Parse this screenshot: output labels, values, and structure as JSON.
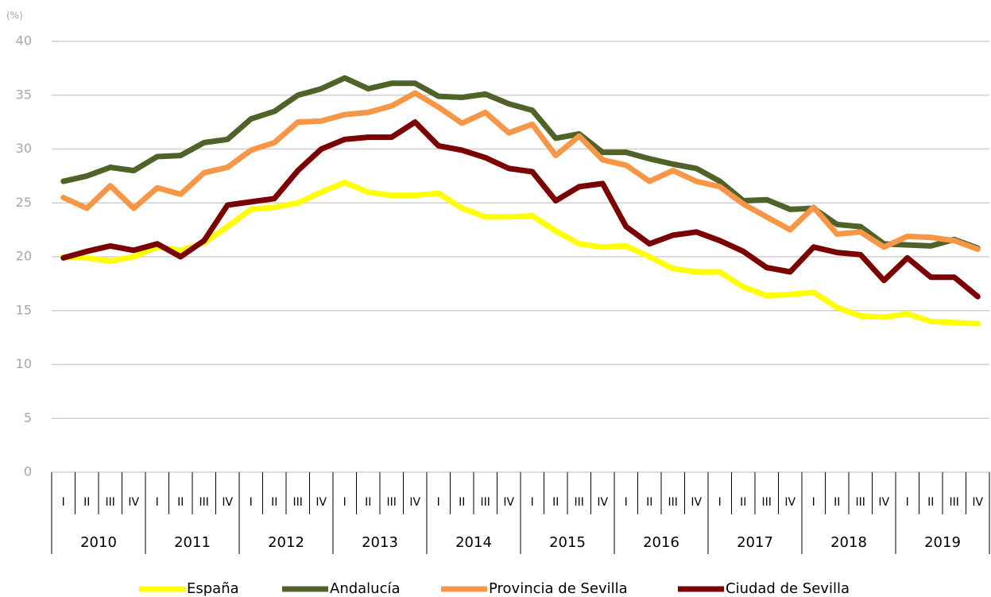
{
  "chart_data": {
    "type": "line",
    "y_unit": "(%)",
    "categories": [
      "I",
      "II",
      "III",
      "IV",
      "I",
      "II",
      "III",
      "IV",
      "I",
      "II",
      "III",
      "IV",
      "I",
      "II",
      "III",
      "IV",
      "I",
      "II",
      "III",
      "IV",
      "I",
      "II",
      "III",
      "IV",
      "I",
      "II",
      "III",
      "IV",
      "I",
      "II",
      "III",
      "IV",
      "I",
      "II",
      "III",
      "IV",
      "I",
      "II",
      "III",
      "IV"
    ],
    "years": [
      "2010",
      "2011",
      "2012",
      "2013",
      "2014",
      "2015",
      "2016",
      "2017",
      "2018",
      "2019"
    ],
    "ylim": [
      0,
      40
    ],
    "yticks": [
      0,
      5,
      10,
      15,
      20,
      25,
      30,
      35,
      40
    ],
    "grid": true,
    "legend": "bottom",
    "series": [
      {
        "name": "España",
        "color": "#ffff00",
        "values": [
          20,
          19.9,
          19.6,
          20,
          20.9,
          20.6,
          21.3,
          22.8,
          24.4,
          24.6,
          25.0,
          26.0,
          26.9,
          26.0,
          25.7,
          25.7,
          25.9,
          24.5,
          23.7,
          23.7,
          23.8,
          22.4,
          21.2,
          20.9,
          21.0,
          20.0,
          18.9,
          18.6,
          18.6,
          17.2,
          16.4,
          16.5,
          16.7,
          15.3,
          14.5,
          14.4,
          14.7,
          14.0,
          13.9,
          13.8
        ]
      },
      {
        "name": "Andalucía",
        "color": "#4f6228",
        "values": [
          27.0,
          27.5,
          28.3,
          28.0,
          29.3,
          29.4,
          30.6,
          30.9,
          32.8,
          33.5,
          35.0,
          35.6,
          36.6,
          35.6,
          36.1,
          36.1,
          34.9,
          34.8,
          35.1,
          34.2,
          33.6,
          31.0,
          31.4,
          29.7,
          29.7,
          29.1,
          28.6,
          28.2,
          27.0,
          25.2,
          25.3,
          24.4,
          24.5,
          23.0,
          22.8,
          21.2,
          21.1,
          21.0,
          21.6,
          20.8
        ]
      },
      {
        "name": "Provincia de Sevilla",
        "color": "#f79646",
        "values": [
          25.5,
          24.5,
          26.6,
          24.5,
          26.4,
          25.8,
          27.8,
          28.3,
          29.9,
          30.6,
          32.5,
          32.6,
          33.2,
          33.4,
          34.0,
          35.2,
          33.9,
          32.4,
          33.4,
          31.5,
          32.3,
          29.4,
          31.2,
          29.0,
          28.5,
          27.0,
          28.0,
          27.0,
          26.5,
          24.9,
          23.7,
          22.5,
          24.6,
          22.1,
          22.3,
          20.9,
          21.9,
          21.8,
          21.5,
          20.7
        ]
      },
      {
        "name": "Ciudad de Sevilla",
        "color": "#7b0000",
        "values": [
          19.9,
          20.5,
          21.0,
          20.6,
          21.2,
          20.0,
          21.5,
          24.8,
          25.1,
          25.4,
          28.0,
          30.0,
          30.9,
          31.1,
          31.1,
          32.5,
          30.3,
          29.9,
          29.2,
          28.2,
          27.9,
          25.2,
          26.5,
          26.8,
          22.8,
          21.2,
          22.0,
          22.3,
          21.5,
          20.5,
          19.0,
          18.6,
          20.9,
          20.4,
          20.2,
          17.8,
          19.9,
          18.1,
          18.1,
          16.3
        ]
      }
    ]
  }
}
